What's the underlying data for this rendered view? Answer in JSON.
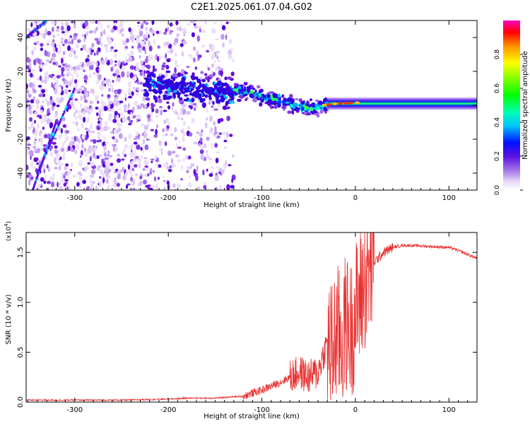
{
  "title": "C2E1.2025.061.07.04.G02",
  "chart_data": [
    {
      "type": "heatmap",
      "xlabel": "Height of straight line (km)",
      "ylabel": "Frequency (Hz)",
      "xlim": [
        -352,
        130
      ],
      "ylim": [
        -50,
        50
      ],
      "xticks": [
        -300,
        -200,
        -100,
        0,
        100
      ],
      "yticks": [
        -40,
        -20,
        0,
        20,
        40
      ],
      "colorbar": {
        "label": "Normalized spectral amplitude",
        "range": [
          0,
          1
        ],
        "ticks": [
          0.0,
          0.2,
          0.4,
          0.6,
          0.8
        ]
      },
      "ridge_frequency_hz": [
        {
          "x": -130,
          "y": 9
        },
        {
          "x": -110,
          "y": 7
        },
        {
          "x": -90,
          "y": 4
        },
        {
          "x": -70,
          "y": 1
        },
        {
          "x": -50,
          "y": -2
        },
        {
          "x": -35,
          "y": 0
        },
        {
          "x": -20,
          "y": 1
        },
        {
          "x": 0,
          "y": 1.5
        },
        {
          "x": 50,
          "y": 1
        },
        {
          "x": 130,
          "y": 1
        }
      ]
    },
    {
      "type": "line",
      "xlabel": "Height of straight line (km)",
      "ylabel": "SNR (10 * v/v)",
      "multiplier": "(x10",
      "multiplier_exp": "4",
      "multiplier_close": ")",
      "xlim": [
        -352,
        130
      ],
      "ylim": [
        0,
        1.7
      ],
      "xticks": [
        -300,
        -200,
        -100,
        0,
        100
      ],
      "yticks": [
        0.0,
        0.5,
        1.0,
        1.5
      ],
      "series": [
        {
          "color": "#e83030",
          "x": [
            -352,
            -300,
            -250,
            -200,
            -180,
            -150,
            -120,
            -100,
            -80,
            -60,
            -50,
            -40,
            -30,
            -25,
            -20,
            -15,
            -10,
            -5,
            0,
            10,
            20,
            30,
            40,
            50,
            60,
            80,
            100,
            110,
            120,
            130
          ],
          "y": [
            0.02,
            0.02,
            0.02,
            0.03,
            0.04,
            0.04,
            0.06,
            0.12,
            0.2,
            0.3,
            0.25,
            0.3,
            0.6,
            0.5,
            0.7,
            0.6,
            0.8,
            0.7,
            0.9,
            1.2,
            1.4,
            1.5,
            1.55,
            1.57,
            1.57,
            1.56,
            1.55,
            1.52,
            1.48,
            1.44
          ]
        }
      ]
    }
  ]
}
